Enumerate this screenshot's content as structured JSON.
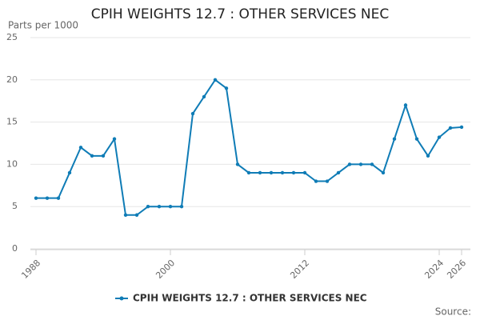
{
  "chart_data": {
    "type": "line",
    "title": "CPIH WEIGHTS 12.7 : OTHER SERVICES NEC",
    "y_label": "Parts per 1000",
    "source": "Source:",
    "x": [
      1988,
      1989,
      1990,
      1991,
      1992,
      1993,
      1994,
      1995,
      1996,
      1997,
      1998,
      1999,
      2000,
      2001,
      2002,
      2003,
      2004,
      2005,
      2006,
      2007,
      2008,
      2009,
      2010,
      2011,
      2012,
      2013,
      2014,
      2015,
      2016,
      2017,
      2018,
      2019,
      2020,
      2021,
      2022,
      2023,
      2024,
      2025,
      2026
    ],
    "series": [
      {
        "name": "CPIH WEIGHTS 12.7 : OTHER SERVICES NEC",
        "color": "#0f7cb6",
        "values": [
          6,
          6,
          6,
          9,
          12,
          11,
          11,
          13,
          4,
          4,
          5,
          5,
          5,
          5,
          16,
          18,
          20,
          19,
          10,
          9,
          9,
          9,
          9,
          9,
          9,
          8,
          8,
          9,
          10,
          10,
          10,
          9,
          13,
          17,
          13,
          11,
          13.2,
          14.3,
          14.4
        ]
      }
    ],
    "xlim": [
      1988,
      2026
    ],
    "xticks": [
      1988,
      2000,
      2012,
      2024,
      2026
    ],
    "ylim": [
      0,
      25
    ],
    "yticks": [
      0,
      5,
      10,
      15,
      20,
      25
    ],
    "grid": true
  }
}
